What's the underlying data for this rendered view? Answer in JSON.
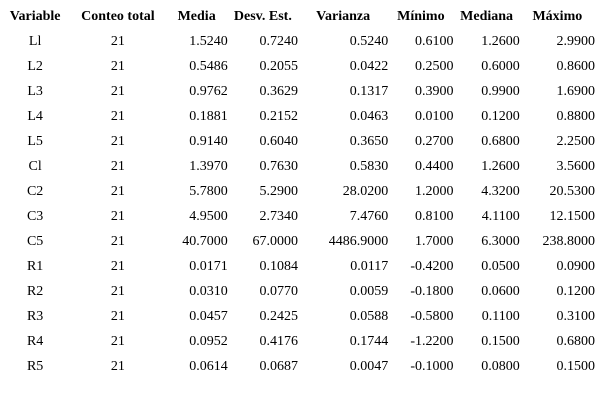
{
  "page": {
    "background_color": "#ffffff",
    "text_color": "#000000"
  },
  "table": {
    "columns": [
      "Variable",
      "Conteo total",
      "Media",
      "Desv. Est.",
      "Varianza",
      "Mínimo",
      "Mediana",
      "Máximo"
    ],
    "rows": [
      [
        "Ll",
        "21",
        "1.5240",
        "0.7240",
        "0.5240",
        "0.6100",
        "1.2600",
        "2.9900"
      ],
      [
        "L2",
        "21",
        "0.5486",
        "0.2055",
        "0.0422",
        "0.2500",
        "0.6000",
        "0.8600"
      ],
      [
        "L3",
        "21",
        "0.9762",
        "0.3629",
        "0.1317",
        "0.3900",
        "0.9900",
        "1.6900"
      ],
      [
        "L4",
        "21",
        "0.1881",
        "0.2152",
        "0.0463",
        "0.0100",
        "0.1200",
        "0.8800"
      ],
      [
        "L5",
        "21",
        "0.9140",
        "0.6040",
        "0.3650",
        "0.2700",
        "0.6800",
        "2.2500"
      ],
      [
        "Cl",
        "21",
        "1.3970",
        "0.7630",
        "0.5830",
        "0.4400",
        "1.2600",
        "3.5600"
      ],
      [
        "C2",
        "21",
        "5.7800",
        "5.2900",
        "28.0200",
        "1.2000",
        "4.3200",
        "20.5300"
      ],
      [
        "C3",
        "21",
        "4.9500",
        "2.7340",
        "7.4760",
        "0.8100",
        "4.1100",
        "12.1500"
      ],
      [
        "C5",
        "21",
        "40.7000",
        "67.0000",
        "4486.9000",
        "1.7000",
        "6.3000",
        "238.8000"
      ],
      [
        "R1",
        "21",
        "0.0171",
        "0.1084",
        "0.0117",
        "-0.4200",
        "0.0500",
        "0.0900"
      ],
      [
        "R2",
        "21",
        "0.0310",
        "0.0770",
        "0.0059",
        "-0.1800",
        "0.0600",
        "0.1200"
      ],
      [
        "R3",
        "21",
        "0.0457",
        "0.2425",
        "0.0588",
        "-0.5800",
        "0.1100",
        "0.3100"
      ],
      [
        "R4",
        "21",
        "0.0952",
        "0.4176",
        "0.1744",
        "-1.2200",
        "0.1500",
        "0.6800"
      ],
      [
        "R5",
        "21",
        "0.0614",
        "0.0687",
        "0.0047",
        "-0.1000",
        "0.0800",
        "0.1500"
      ]
    ]
  }
}
